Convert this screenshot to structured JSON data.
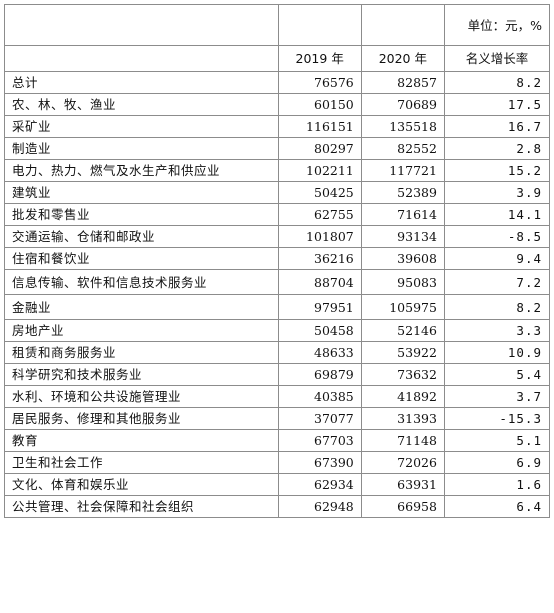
{
  "unit_label": "单位：元，%",
  "headers": {
    "year2019": "2019 年",
    "year2020": "2020 年",
    "growth": "名义增长率"
  },
  "rows": [
    {
      "name": "总计",
      "v2019": "76576",
      "v2020": "82857",
      "growth": "8.2"
    },
    {
      "name": "农、林、牧、渔业",
      "v2019": "60150",
      "v2020": "70689",
      "growth": "17.5"
    },
    {
      "name": "采矿业",
      "v2019": "116151",
      "v2020": "135518",
      "growth": "16.7"
    },
    {
      "name": "制造业",
      "v2019": "80297",
      "v2020": "82552",
      "growth": "2.8"
    },
    {
      "name": "电力、热力、燃气及水生产和供应业",
      "v2019": "102211",
      "v2020": "117721",
      "growth": "15.2"
    },
    {
      "name": "建筑业",
      "v2019": "50425",
      "v2020": "52389",
      "growth": "3.9"
    },
    {
      "name": "批发和零售业",
      "v2019": "62755",
      "v2020": "71614",
      "growth": "14.1"
    },
    {
      "name": "交通运输、仓储和邮政业",
      "v2019": "101807",
      "v2020": "93134",
      "growth": "-8.5"
    },
    {
      "name": "住宿和餐饮业",
      "v2019": "36216",
      "v2020": "39608",
      "growth": "9.4"
    },
    {
      "name": "信息传输、软件和信息技术服务业",
      "v2019": "88704",
      "v2020": "95083",
      "growth": "7.2"
    },
    {
      "name": "金融业",
      "v2019": "97951",
      "v2020": "105975",
      "growth": "8.2"
    },
    {
      "name": "房地产业",
      "v2019": "50458",
      "v2020": "52146",
      "growth": "3.3"
    },
    {
      "name": "租赁和商务服务业",
      "v2019": "48633",
      "v2020": "53922",
      "growth": "10.9"
    },
    {
      "name": "科学研究和技术服务业",
      "v2019": "69879",
      "v2020": "73632",
      "growth": "5.4"
    },
    {
      "name": "水利、环境和公共设施管理业",
      "v2019": "40385",
      "v2020": "41892",
      "growth": "3.7"
    },
    {
      "name": "居民服务、修理和其他服务业",
      "v2019": "37077",
      "v2020": "31393",
      "growth": "-15.3"
    },
    {
      "name": "教育",
      "v2019": "67703",
      "v2020": "71148",
      "growth": "5.1"
    },
    {
      "name": "卫生和社会工作",
      "v2019": "67390",
      "v2020": "72026",
      "growth": "6.9"
    },
    {
      "name": "文化、体育和娱乐业",
      "v2019": "62934",
      "v2020": "63931",
      "growth": "1.6"
    },
    {
      "name": "公共管理、社会保障和社会组织",
      "v2019": "62948",
      "v2020": "66958",
      "growth": "6.4"
    }
  ]
}
